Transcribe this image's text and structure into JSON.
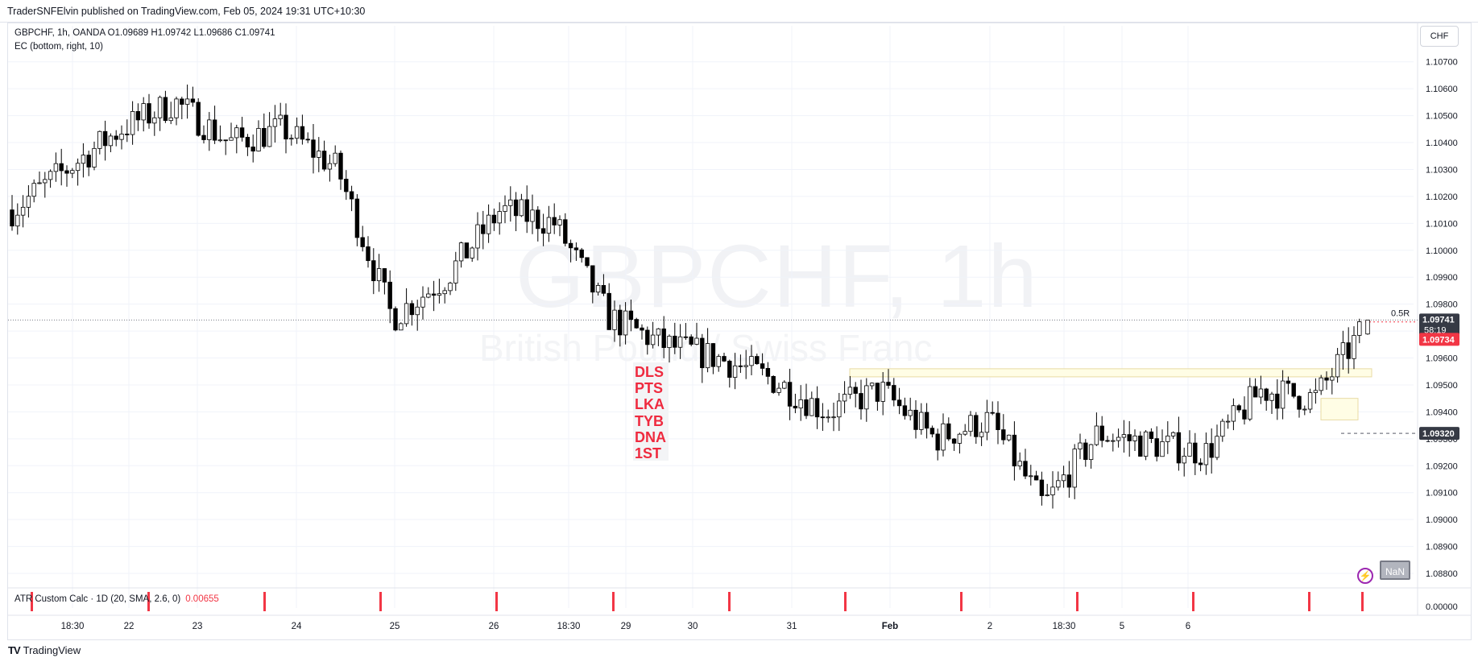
{
  "publish_line": "TraderSNFElvin published on TradingView.com, Feb 05, 2024 19:31 UTC+10:30",
  "legend": {
    "symbol_line": "GBPCHF, 1h, OANDA  O1.09689  H1.09742  L1.09686  C1.09741",
    "indicator_line": "EC (bottom, right, 10)"
  },
  "currency_button": "CHF",
  "watermark": {
    "title": "GBPCHF, 1h",
    "subtitle": "British Pound / Swiss Franc"
  },
  "tags": [
    "DLS",
    "PTS",
    "LKA",
    "TYB",
    "DNA",
    "1ST"
  ],
  "atr": {
    "label": "ATR Custom Calc · 1D (20, SMA, 2.6, 0)",
    "value": "0.00655",
    "axis_label": "0.00000"
  },
  "price_labels": {
    "current": "1.09741",
    "countdown": "58:19",
    "red": "1.09734",
    "lower": "1.09320",
    "r_label": "0.5R"
  },
  "nan_button": "NaN",
  "bolt_icon": "⚡",
  "footer": {
    "logo": "TV",
    "brand": "TradingView"
  },
  "colors": {
    "up": "#ffffff",
    "down": "#000000",
    "outline": "#000000",
    "grid": "#f0f3fa",
    "accent_red": "#f23645",
    "zone_fill": "#fffde5",
    "zone_border": "#e8dba4"
  },
  "chart_data": {
    "type": "candlestick",
    "title": "GBPCHF, 1h",
    "y_axis_ticks": [
      "1.08800",
      "1.08900",
      "1.09000",
      "1.09100",
      "1.09200",
      "1.09300",
      "1.09400",
      "1.09500",
      "1.09600",
      "1.09700",
      "1.09800",
      "1.09900",
      "1.10000",
      "1.10100",
      "1.10200",
      "1.10300",
      "1.10400",
      "1.10500",
      "1.10600",
      "1.10700"
    ],
    "ylim": [
      1.088,
      1.1075
    ],
    "x_axis_ticks": [
      "18:30",
      "22",
      "23",
      "24",
      "25",
      "26",
      "18:30",
      "29",
      "30",
      "31",
      "Feb",
      "2",
      "18:30",
      "5",
      "6"
    ],
    "path": [
      [
        "18:30",
        1.1015
      ],
      [
        "22",
        1.103
      ],
      [
        "23",
        1.1045
      ],
      [
        "23",
        1.1055
      ],
      [
        "24",
        1.104
      ],
      [
        "24",
        1.1045
      ],
      [
        "25",
        1.103
      ],
      [
        "25",
        1.0975
      ],
      [
        "26",
        1.099
      ],
      [
        "26",
        1.1015
      ],
      [
        "18:30",
        1.101
      ],
      [
        "29",
        1.0975
      ],
      [
        "29",
        1.0965
      ],
      [
        "30",
        1.096
      ],
      [
        "30",
        1.0952
      ],
      [
        "31",
        1.094
      ],
      [
        "31",
        1.0948
      ],
      [
        "Feb",
        1.093
      ],
      [
        "Feb",
        1.0937
      ],
      [
        "2",
        1.0905
      ],
      [
        "2",
        1.0932
      ],
      [
        "18:30",
        1.0928
      ],
      [
        "18:30",
        1.0925
      ],
      [
        "5",
        1.0948
      ],
      [
        "5",
        1.0945
      ],
      [
        "5",
        1.0974
      ]
    ],
    "open": 1.09689,
    "high": 1.09742,
    "low": 1.09686,
    "close": 1.09741,
    "levels": {
      "last_price": 1.09741,
      "red_line": 1.09734,
      "lower_line": 1.0932
    },
    "zones": [
      {
        "from": "30",
        "to": "5",
        "low": 1.0953,
        "high": 1.0956
      },
      {
        "from": "5",
        "to": "5",
        "low": 1.0937,
        "high": 1.0945
      }
    ],
    "legend": "none",
    "grid": true
  }
}
